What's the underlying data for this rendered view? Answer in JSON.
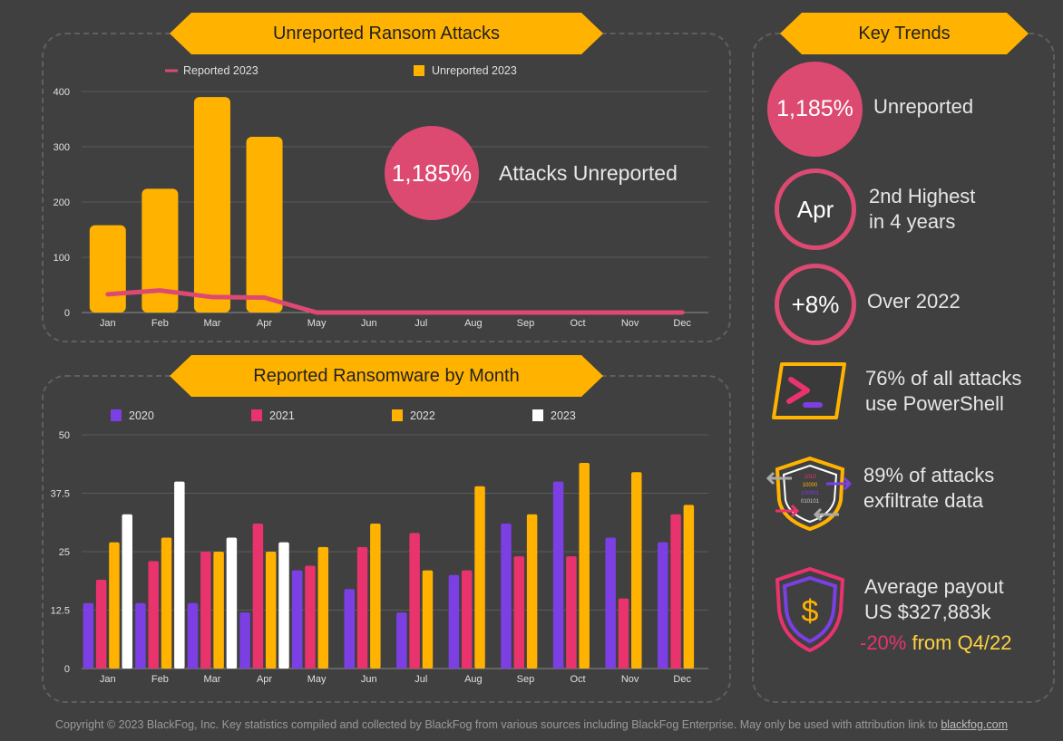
{
  "top_panel": {
    "title": "Unreported Ransom Attacks",
    "stat_value": "1,185%",
    "stat_label": "Attacks Unreported"
  },
  "bottom_panel": {
    "title": "Reported Ransomware by Month"
  },
  "key_trends": {
    "title": "Key Trends",
    "items": [
      {
        "value": "1,185%",
        "text": "Unreported"
      },
      {
        "value": "Apr",
        "line1": "2nd Highest",
        "line2": "in 4 years"
      },
      {
        "value": "+8%",
        "text": "Over 2022"
      },
      {
        "line1": "76% of all attacks",
        "line2": "use PowerShell",
        "icon": "powershell-icon"
      },
      {
        "line1": "89% of attacks",
        "line2": "exfiltrate data",
        "icon": "exfiltration-shield-icon"
      },
      {
        "line1": "Average payout",
        "line2": "US $327,883k",
        "change": "-20%",
        "change_suffix": " from Q4/22",
        "icon": "dollar-shield-icon"
      }
    ]
  },
  "icon_text": {
    "bits": [
      "1010",
      "10000",
      "100001",
      "010101"
    ],
    "dollar": "$"
  },
  "footer": {
    "text": "Copyright © 2023 BlackFog, Inc. Key statistics compiled and collected by BlackFog from various sources including BlackFog Enterprise. May only be used with attribution link to ",
    "link": "blackfog.com"
  },
  "colors": {
    "accent": "#ffb300",
    "pink": "#dc4a72",
    "purple": "#7b3fe4",
    "magenta": "#e8336d",
    "white": "#ffffff"
  },
  "chart_data": [
    {
      "type": "bar",
      "title": "Unreported Ransom Attacks",
      "categories": [
        "Jan",
        "Feb",
        "Mar",
        "Apr",
        "May",
        "Jun",
        "Jul",
        "Aug",
        "Sep",
        "Oct",
        "Nov",
        "Dec"
      ],
      "ylim": [
        0,
        400
      ],
      "yticks": [
        0,
        100,
        200,
        300,
        400
      ],
      "legend": "top",
      "series": [
        {
          "name": "Unreported 2023",
          "kind": "bar",
          "color": "#ffb300",
          "values": [
            158,
            224,
            390,
            318,
            null,
            null,
            null,
            null,
            null,
            null,
            null,
            null
          ]
        },
        {
          "name": "Reported 2023",
          "kind": "line",
          "color": "#dc4a72",
          "values": [
            33,
            40,
            28,
            27,
            0,
            0,
            0,
            0,
            0,
            0,
            0,
            0
          ]
        }
      ]
    },
    {
      "type": "bar",
      "title": "Reported Ransomware by Month",
      "categories": [
        "Jan",
        "Feb",
        "Mar",
        "Apr",
        "May",
        "Jun",
        "Jul",
        "Aug",
        "Sep",
        "Oct",
        "Nov",
        "Dec"
      ],
      "ylim": [
        0,
        50
      ],
      "yticks": [
        0,
        12.5,
        25,
        37.5,
        50
      ],
      "legend": "top",
      "series": [
        {
          "name": "2020",
          "color": "#7b3fe4",
          "values": [
            14,
            14,
            14,
            12,
            21,
            17,
            12,
            20,
            31,
            40,
            28,
            27
          ]
        },
        {
          "name": "2021",
          "color": "#e8336d",
          "values": [
            19,
            23,
            25,
            31,
            22,
            26,
            29,
            21,
            24,
            24,
            15,
            33
          ]
        },
        {
          "name": "2022",
          "color": "#ffb300",
          "values": [
            27,
            28,
            25,
            25,
            26,
            31,
            21,
            39,
            33,
            44,
            42,
            35
          ]
        },
        {
          "name": "2023",
          "color": "#ffffff",
          "values": [
            33,
            40,
            28,
            27,
            null,
            null,
            null,
            null,
            null,
            null,
            null,
            null
          ]
        }
      ]
    }
  ]
}
